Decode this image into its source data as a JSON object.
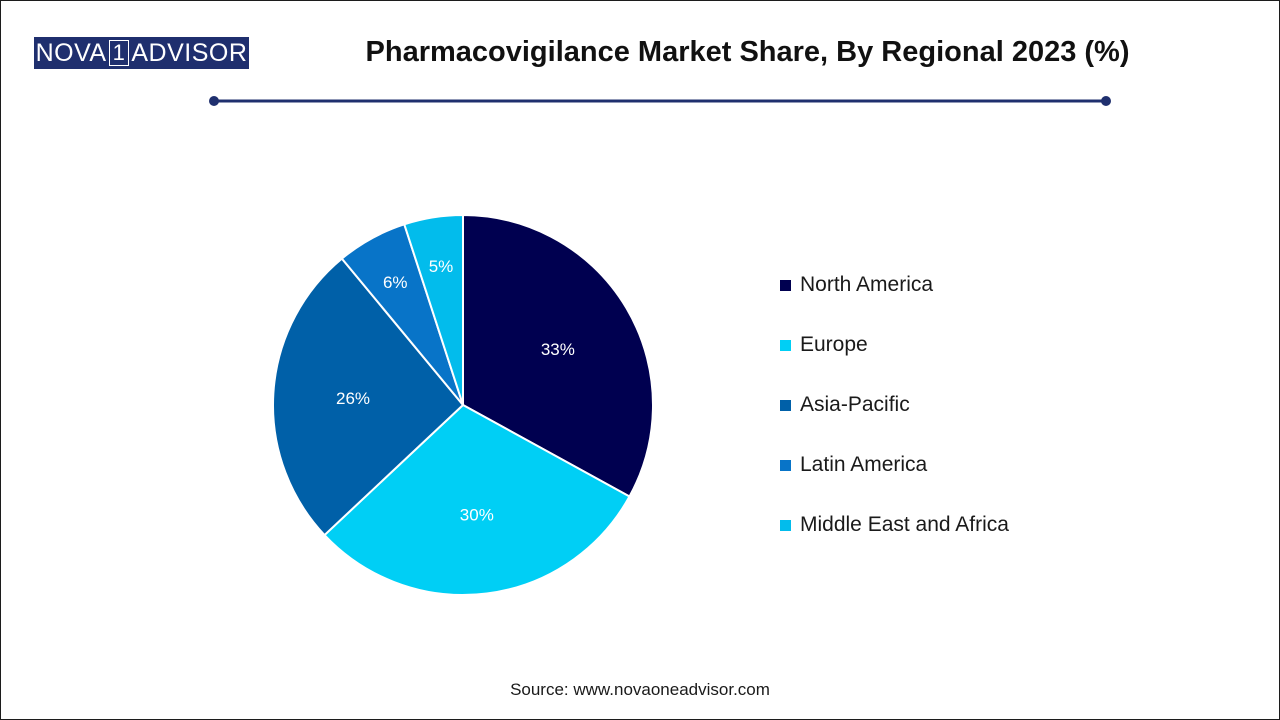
{
  "logo": {
    "prefix": "NOVA",
    "digit": "1",
    "suffix": "ADVISOR"
  },
  "title": "Pharmacovigilance Market Share, By Regional 2023 (%)",
  "source": "Source: www.novaoneadvisor.com",
  "colors": {
    "logo_bg": "#1f2f6e",
    "rule": "#1f2f6e",
    "north_america": "#000050",
    "europe": "#00cff5",
    "asia_pacific": "#0060a8",
    "latin_america": "#0874c8",
    "middle_east_africa": "#02bcec"
  },
  "chart_data": {
    "type": "pie",
    "title": "Pharmacovigilance Market Share, By Regional 2023 (%)",
    "legend_position": "right",
    "slices": [
      {
        "label": "North America",
        "value": 33,
        "display": "33%",
        "color": "#000050"
      },
      {
        "label": "Europe",
        "value": 30,
        "display": "30%",
        "color": "#00cff5"
      },
      {
        "label": "Asia-Pacific",
        "value": 26,
        "display": "26%",
        "color": "#0060a8"
      },
      {
        "label": "Latin America",
        "value": 6,
        "display": "6%",
        "color": "#0874c8"
      },
      {
        "label": "Middle East and Africa",
        "value": 5,
        "display": "5%",
        "color": "#02bcec"
      }
    ]
  }
}
